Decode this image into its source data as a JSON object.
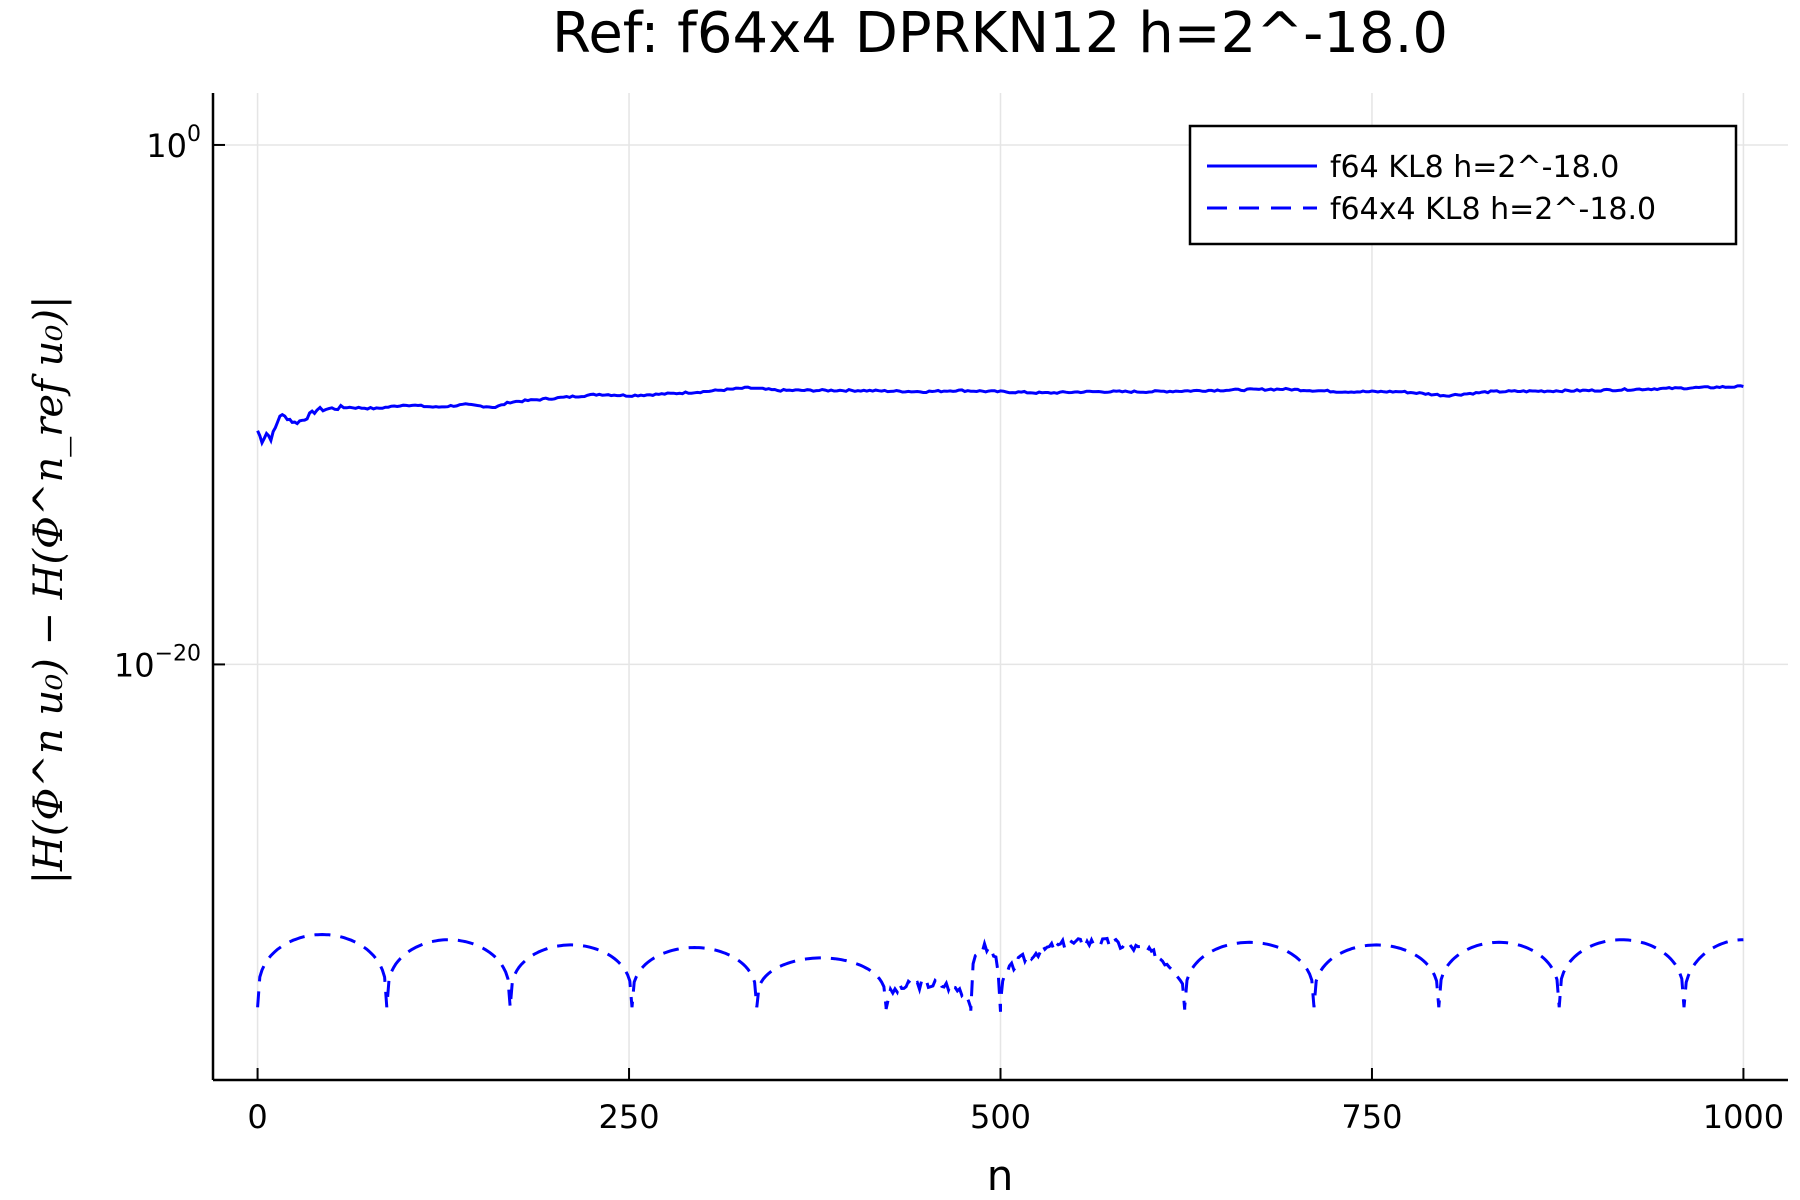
{
  "chart_data": {
    "type": "line",
    "title": "Ref: f64x4 DPRKN12 h=2^-18.0",
    "xlabel": "n",
    "ylabel": "|H(Φ^n u₀) − H(Φ^n_ref u₀)|",
    "yscale": "log",
    "xlim": [
      -30,
      1030
    ],
    "ylim_exponent": [
      -36,
      2
    ],
    "grid": true,
    "legend_position": "top-right",
    "x_ticks": [
      0,
      250,
      500,
      750,
      1000
    ],
    "x_tick_labels": [
      "0",
      "250",
      "500",
      "750",
      "1000"
    ],
    "y_ticks_exponent": [
      0,
      -20
    ],
    "y_tick_labels": [
      {
        "base": "10",
        "exp": "0"
      },
      {
        "base": "10",
        "exp": "−20"
      }
    ],
    "series": [
      {
        "name": "f64 KL8 h=2^-18.0",
        "color": "#0000ff",
        "style": "solid",
        "points_log10": [
          [
            0,
            -11.0
          ],
          [
            3,
            -11.4
          ],
          [
            6,
            -11.1
          ],
          [
            9,
            -11.3
          ],
          [
            12,
            -10.9
          ],
          [
            15,
            -10.4
          ],
          [
            20,
            -10.5
          ],
          [
            25,
            -10.7
          ],
          [
            30,
            -10.6
          ],
          [
            35,
            -10.4
          ],
          [
            40,
            -10.2
          ],
          [
            50,
            -10.15
          ],
          [
            60,
            -10.1
          ],
          [
            80,
            -10.15
          ],
          [
            100,
            -10.0
          ],
          [
            120,
            -10.1
          ],
          [
            140,
            -10.0
          ],
          [
            160,
            -10.1
          ],
          [
            170,
            -9.9
          ],
          [
            190,
            -9.8
          ],
          [
            210,
            -9.7
          ],
          [
            230,
            -9.6
          ],
          [
            250,
            -9.65
          ],
          [
            270,
            -9.6
          ],
          [
            300,
            -9.5
          ],
          [
            330,
            -9.35
          ],
          [
            350,
            -9.45
          ],
          [
            400,
            -9.45
          ],
          [
            450,
            -9.5
          ],
          [
            470,
            -9.45
          ],
          [
            500,
            -9.5
          ],
          [
            530,
            -9.55
          ],
          [
            560,
            -9.5
          ],
          [
            600,
            -9.5
          ],
          [
            640,
            -9.45
          ],
          [
            690,
            -9.4
          ],
          [
            730,
            -9.5
          ],
          [
            770,
            -9.5
          ],
          [
            800,
            -9.65
          ],
          [
            830,
            -9.5
          ],
          [
            900,
            -9.45
          ],
          [
            1000,
            -9.3
          ]
        ]
      },
      {
        "name": "f64x4 KL8 h=2^-18.0",
        "color": "#0000ff",
        "style": "dashed",
        "dips": [
          0,
          87,
          170,
          252,
          336,
          423,
          480,
          500,
          624,
          711,
          795,
          876,
          960
        ],
        "env_peaks": [
          [
            44,
            -30.4
          ],
          [
            128,
            -30.6
          ],
          [
            211,
            -30.8
          ],
          [
            294,
            -30.9
          ],
          [
            380,
            -31.3
          ],
          [
            459,
            -32.3
          ],
          [
            568,
            -30.9
          ],
          [
            668,
            -30.7
          ],
          [
            752,
            -30.7
          ],
          [
            836,
            -30.8
          ],
          [
            917,
            -30.7
          ],
          [
            1000,
            -30.6
          ]
        ],
        "dip_depth": -33.2
      }
    ]
  }
}
